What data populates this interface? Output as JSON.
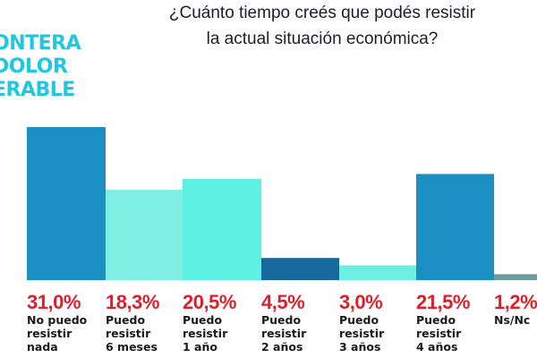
{
  "title_line1": "¿Cuánto tiempo creés que podés resistir",
  "title_line2": "la actual situación económica?",
  "brand": [
    "ONTERA",
    "DOLOR",
    "ERABLE"
  ],
  "chart_data": {
    "type": "bar",
    "title": "¿Cuánto tiempo creés que podés resistir la actual situación económica?",
    "categories": [
      "No puedo resistir nada",
      "Puedo resistir 6 meses",
      "Puedo resistir 1 año",
      "Puedo resistir 2 años",
      "Puedo resistir 3 años",
      "Puedo resistir 4 años",
      "Ns/Nc"
    ],
    "values": [
      31.0,
      18.3,
      20.5,
      4.5,
      3.0,
      21.5,
      1.2
    ],
    "labels": [
      "31,0%",
      "18,3%",
      "20,5%",
      "4,5%",
      "3,0%",
      "21,5%",
      "1,2%"
    ],
    "colors": [
      "#1b8fc2",
      "#80efe3",
      "#5ef1e3",
      "#15699c",
      "#6cf0e4",
      "#1b8fc2",
      "#6b9c9c"
    ],
    "ylim": [
      0,
      31
    ],
    "grid": false
  }
}
